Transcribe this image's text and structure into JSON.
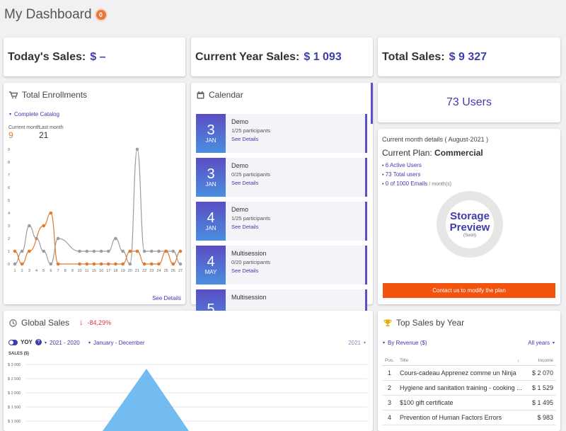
{
  "header": {
    "title": "My Dashboard",
    "badge": "0"
  },
  "kpis": {
    "today": {
      "label": "Today's Sales:",
      "value": "$ –"
    },
    "year": {
      "label": "Current Year Sales:",
      "value": "$ 1 093"
    },
    "total": {
      "label": "Total Sales:",
      "value": "$ 9 327"
    }
  },
  "enrollments": {
    "title": "Total Enrollments",
    "filter": "Complete Catalog",
    "current_label": "Current month",
    "current_value": "9",
    "last_label": "Last month",
    "last_value": "21",
    "details": "See Details",
    "colors": {
      "current": "#e07a2e",
      "last": "#9e9e9e"
    }
  },
  "chart_data": {
    "type": "line",
    "title": "",
    "x": [
      1,
      2,
      3,
      4,
      5,
      6,
      7,
      8,
      9,
      10,
      11,
      12,
      13,
      14,
      15,
      16,
      17,
      18,
      19,
      20,
      21,
      22,
      23,
      24,
      25,
      26,
      27
    ],
    "x_ticks": [
      "1",
      "2",
      "3",
      "4",
      "5",
      "6",
      "7",
      "8",
      "9",
      "10",
      "11",
      "15",
      "16",
      "17",
      "18",
      "19",
      "20",
      "21",
      "22",
      "23",
      "24",
      "25",
      "26",
      "27"
    ],
    "y_ticks": [
      "0",
      "1",
      "2",
      "3",
      "4",
      "5",
      "6",
      "7",
      "8",
      "9"
    ],
    "ylim": [
      0,
      9
    ],
    "series": [
      {
        "name": "Current month",
        "color": "#e07a2e",
        "points": [
          [
            1,
            1
          ],
          [
            2,
            0
          ],
          [
            3,
            1
          ],
          [
            5,
            3
          ],
          [
            6,
            4
          ],
          [
            7,
            0
          ],
          [
            10,
            0
          ],
          [
            11,
            0
          ],
          [
            15,
            0
          ],
          [
            16,
            0
          ],
          [
            17,
            0
          ],
          [
            18,
            0
          ],
          [
            19,
            0
          ],
          [
            20,
            1
          ],
          [
            21,
            1
          ],
          [
            22,
            0
          ],
          [
            23,
            0
          ],
          [
            24,
            0
          ],
          [
            25,
            1
          ],
          [
            26,
            0
          ],
          [
            27,
            1
          ]
        ]
      },
      {
        "name": "Last month",
        "color": "#9e9e9e",
        "points": [
          [
            1,
            0
          ],
          [
            2,
            1
          ],
          [
            3,
            3
          ],
          [
            4,
            2
          ],
          [
            5,
            1
          ],
          [
            6,
            0
          ],
          [
            7,
            2
          ],
          [
            10,
            1
          ],
          [
            11,
            1
          ],
          [
            15,
            1
          ],
          [
            16,
            1
          ],
          [
            17,
            1
          ],
          [
            18,
            2
          ],
          [
            19,
            1
          ],
          [
            20,
            0
          ],
          [
            21,
            9
          ],
          [
            22,
            1
          ],
          [
            23,
            1
          ],
          [
            24,
            1
          ],
          [
            25,
            1
          ],
          [
            26,
            1
          ],
          [
            27,
            0
          ]
        ]
      }
    ]
  },
  "calendar": {
    "title": "Calendar",
    "items": [
      {
        "day": "3",
        "month": "JAN",
        "title": "Demo",
        "participants": "1/25 participants",
        "link": "See Details"
      },
      {
        "day": "3",
        "month": "JAN",
        "title": "Demo",
        "participants": "0/25 participants",
        "link": "See Details"
      },
      {
        "day": "4",
        "month": "JAN",
        "title": "Demo",
        "participants": "1/25 participants",
        "link": "See Details"
      },
      {
        "day": "4",
        "month": "MAY",
        "title": "Multisession",
        "participants": "0/20 participants",
        "link": "See Details"
      },
      {
        "day": "5",
        "month": "",
        "title": "Multisession",
        "participants": "",
        "link": ""
      }
    ]
  },
  "users": {
    "label": "73 Users"
  },
  "plan": {
    "month_details": "Current month details ( August-2021 )",
    "plan_label": "Current Plan:",
    "plan_name": "Commercial",
    "items": [
      "6 Active Users",
      "73 Total users",
      "0 of 1000 Emails"
    ],
    "items_suffix": "/ month(s)",
    "storage_title_1": "Storage",
    "storage_title_2": "Preview",
    "storage_soon": "(Soon)",
    "cta": "Contact us to modify the plan"
  },
  "global_sales": {
    "title": "Global Sales",
    "change": "-84,29%",
    "yoy_label": "YOY",
    "range_years": "2021 - 2020",
    "range_months": "January - December",
    "year_select": "2021",
    "axis_label": "SALES ($)",
    "y_ticks": [
      "$ 3 000",
      "$ 2 500",
      "$ 2 000",
      "$ 1 500",
      "$ 1 000"
    ]
  },
  "top_sales": {
    "title": "Top Sales by Year",
    "filter": "By Revenue ($)",
    "year_filter": "All years",
    "columns": {
      "pos": "Pos.",
      "title": "Title",
      "sort": "↓",
      "income": "Income"
    },
    "rows": [
      {
        "pos": "1",
        "title": "Cours-cadeau Apprenez comme un Ninja",
        "income": "$ 2 070"
      },
      {
        "pos": "2",
        "title": "Hygiene and sanitation training - cooking ...",
        "income": "$ 1 529"
      },
      {
        "pos": "3",
        "title": "$100 gift certificate",
        "income": "$ 1 495"
      },
      {
        "pos": "4",
        "title": "Prevention of Human Factors Errors",
        "income": "$ 983"
      }
    ]
  }
}
